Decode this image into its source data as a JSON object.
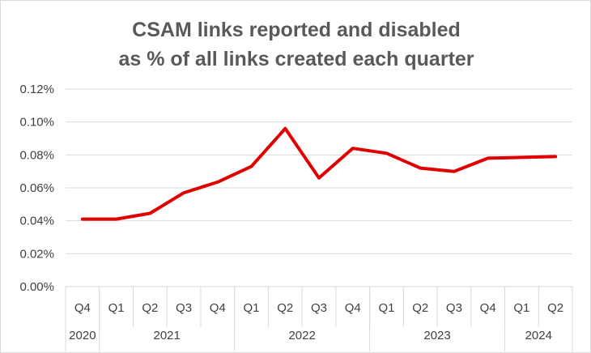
{
  "chart_data": {
    "type": "line",
    "title_lines": [
      "CSAM links reported and disabled",
      "as % of all links created each quarter"
    ],
    "ylim": [
      0,
      0.12
    ],
    "y_ticks": [
      "0.00%",
      "0.02%",
      "0.04%",
      "0.06%",
      "0.08%",
      "0.10%",
      "0.12%"
    ],
    "grid": true,
    "line_color": "#e00000",
    "quarters": [
      "Q4",
      "Q1",
      "Q2",
      "Q3",
      "Q4",
      "Q1",
      "Q2",
      "Q3",
      "Q4",
      "Q1",
      "Q2",
      "Q3",
      "Q4",
      "Q1",
      "Q2"
    ],
    "years": [
      {
        "label": "2020",
        "start": 0,
        "count": 1
      },
      {
        "label": "2021",
        "start": 1,
        "count": 4
      },
      {
        "label": "2022",
        "start": 5,
        "count": 4
      },
      {
        "label": "2023",
        "start": 9,
        "count": 4
      },
      {
        "label": "2024",
        "start": 13,
        "count": 2
      }
    ],
    "series": [
      {
        "values": [
          0.041,
          0.041,
          0.0445,
          0.057,
          0.0635,
          0.073,
          0.096,
          0.066,
          0.084,
          0.081,
          0.072,
          0.07,
          0.078,
          0.0785,
          0.079
        ]
      }
    ]
  }
}
